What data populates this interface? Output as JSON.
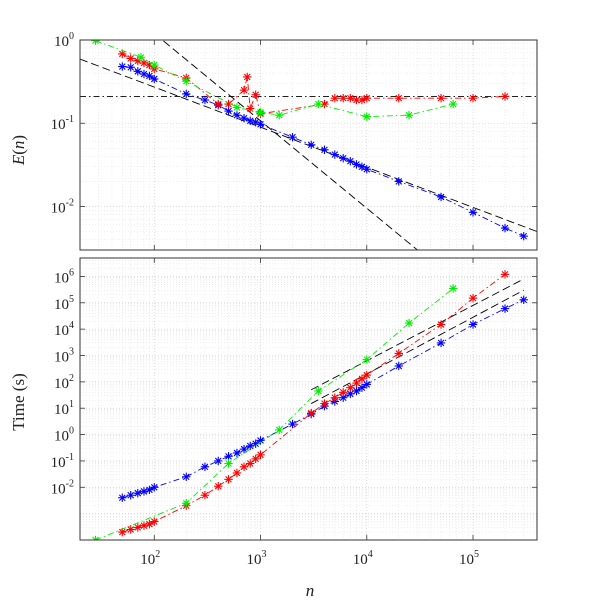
{
  "chart_data": [
    {
      "type": "line",
      "x_scale": "log",
      "y_scale": "log",
      "xlim": [
        20,
        400000
      ],
      "ylim": [
        0.003,
        1
      ],
      "ylabel_text": "E(n)",
      "ylabel_italic": "E",
      "ylabel_paren_open": "(",
      "ylabel_var": "n",
      "ylabel_paren_close": ")",
      "y_ticks": [
        {
          "base": "10",
          "exp": "-2",
          "value": 0.01
        },
        {
          "base": "10",
          "exp": "-1",
          "value": 0.1
        },
        {
          "base": "10",
          "exp": "0",
          "value": 1
        }
      ],
      "grid": true,
      "series": [
        {
          "color": "#0000ff",
          "marker": "asterisk",
          "line": "dash-dot",
          "x": [
            50,
            60,
            70,
            80,
            90,
            100,
            200,
            300,
            400,
            500,
            600,
            700,
            800,
            900,
            1000,
            2000,
            3000,
            4000,
            5000,
            6000,
            7000,
            8000,
            9000,
            10000,
            20000,
            50000,
            100000,
            200000,
            300000
          ],
          "y": [
            0.48,
            0.47,
            0.42,
            0.39,
            0.37,
            0.34,
            0.225,
            0.19,
            0.165,
            0.14,
            0.125,
            0.115,
            0.107,
            0.103,
            0.097,
            0.068,
            0.055,
            0.048,
            0.042,
            0.038,
            0.035,
            0.032,
            0.03,
            0.028,
            0.02,
            0.013,
            0.0085,
            0.0055,
            0.0044
          ]
        },
        {
          "color": "#ff0000",
          "marker": "asterisk",
          "line": "dash-dot",
          "x": [
            50,
            60,
            70,
            80,
            90,
            100,
            200,
            400,
            500,
            700,
            750,
            800,
            900,
            1000,
            4000,
            5000,
            6000,
            7000,
            8000,
            9000,
            10000,
            20000,
            50000,
            100000,
            200000
          ],
          "y": [
            0.68,
            0.6,
            0.56,
            0.53,
            0.5,
            0.45,
            0.35,
            0.17,
            0.17,
            0.25,
            0.36,
            0.15,
            0.22,
            0.13,
            0.17,
            0.2,
            0.2,
            0.2,
            0.19,
            0.19,
            0.2,
            0.2,
            0.2,
            0.2,
            0.21
          ]
        },
        {
          "color": "#00ee00",
          "marker": "asterisk",
          "line": "dash-dot",
          "x": [
            28,
            75,
            100,
            200,
            600,
            1000,
            1500,
            3500,
            10000,
            25000,
            65000
          ],
          "y": [
            0.98,
            0.62,
            0.5,
            0.32,
            0.155,
            0.135,
            0.125,
            0.17,
            0.12,
            0.125,
            0.17
          ]
        }
      ],
      "reference_lines": [
        {
          "kind": "horizontal",
          "style": "dash-dot",
          "color": "#000000",
          "y": 0.21
        },
        {
          "kind": "power-law",
          "style": "dashed",
          "color": "#000000",
          "x": [
            20,
            400000
          ],
          "y": [
            0.59,
            0.005
          ]
        },
        {
          "kind": "power-law",
          "style": "dashed",
          "color": "#000000",
          "x": [
            100,
            30000
          ],
          "y": [
            1.2,
            0.003
          ]
        }
      ]
    },
    {
      "type": "line",
      "x_scale": "log",
      "y_scale": "log",
      "xlim": [
        20,
        400000
      ],
      "ylim": [
        0.0001,
        5000000
      ],
      "ylabel_text": "Time (s)",
      "xlabel_text": "n",
      "y_ticks": [
        {
          "base": "10",
          "exp": "-2",
          "value": 0.01
        },
        {
          "base": "10",
          "exp": "-1",
          "value": 0.1
        },
        {
          "base": "10",
          "exp": "0",
          "value": 1
        },
        {
          "base": "10",
          "exp": "1",
          "value": 10
        },
        {
          "base": "10",
          "exp": "2",
          "value": 100
        },
        {
          "base": "10",
          "exp": "3",
          "value": 1000
        },
        {
          "base": "10",
          "exp": "4",
          "value": 10000
        },
        {
          "base": "10",
          "exp": "5",
          "value": 100000
        },
        {
          "base": "10",
          "exp": "6",
          "value": 1000000
        }
      ],
      "x_ticks": [
        {
          "base": "10",
          "exp": "2",
          "value": 100
        },
        {
          "base": "10",
          "exp": "3",
          "value": 1000
        },
        {
          "base": "10",
          "exp": "4",
          "value": 10000
        },
        {
          "base": "10",
          "exp": "5",
          "value": 100000
        }
      ],
      "grid": true,
      "series": [
        {
          "color": "#0000ff",
          "marker": "asterisk",
          "line": "dash-dot",
          "x": [
            50,
            60,
            70,
            80,
            90,
            100,
            200,
            300,
            400,
            500,
            600,
            700,
            800,
            900,
            1000,
            2000,
            3000,
            4000,
            5000,
            6000,
            7000,
            8000,
            9000,
            10000,
            20000,
            50000,
            100000,
            200000,
            300000
          ],
          "y": [
            0.004,
            0.005,
            0.006,
            0.007,
            0.008,
            0.01,
            0.025,
            0.06,
            0.1,
            0.15,
            0.2,
            0.28,
            0.37,
            0.45,
            0.6,
            2.5,
            6,
            12,
            18,
            25,
            35,
            45,
            60,
            80,
            400,
            3000,
            15000,
            60000,
            130000
          ]
        },
        {
          "color": "#ff0000",
          "marker": "asterisk",
          "line": "dash-dot",
          "x": [
            50,
            60,
            70,
            80,
            90,
            100,
            200,
            300,
            400,
            500,
            600,
            700,
            800,
            900,
            1000,
            3000,
            4000,
            5000,
            6000,
            7000,
            8000,
            9000,
            10000,
            20000,
            50000,
            100000,
            200000
          ],
          "y": [
            0.0002,
            0.00025,
            0.0003,
            0.00035,
            0.0004,
            0.0005,
            0.002,
            0.005,
            0.011,
            0.02,
            0.035,
            0.06,
            0.08,
            0.12,
            0.17,
            6.5,
            15,
            25,
            40,
            60,
            90,
            130,
            180,
            1200,
            15000,
            150000,
            1200000
          ]
        },
        {
          "color": "#00ee00",
          "marker": "asterisk",
          "line": "dash-dot",
          "x": [
            28,
            200,
            500,
            1500,
            3500,
            10000,
            25000,
            65000
          ],
          "y": [
            0.0001,
            0.0025,
            0.08,
            1.5,
            45,
            700,
            17000,
            350000
          ]
        }
      ],
      "reference_lines": [
        {
          "kind": "power-law",
          "style": "dashed",
          "color": "#000000",
          "x": [
            3000,
            300000
          ],
          "y": [
            50,
            800000
          ]
        },
        {
          "kind": "power-law",
          "style": "dashed",
          "color": "#000000",
          "x": [
            3000,
            300000
          ],
          "y": [
            15,
            300000
          ]
        }
      ]
    }
  ]
}
